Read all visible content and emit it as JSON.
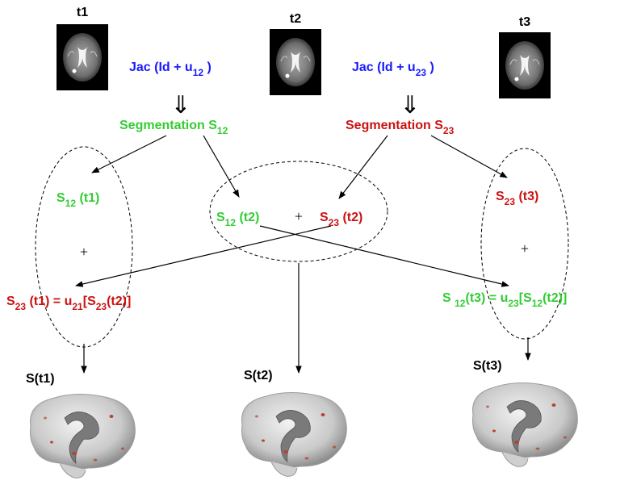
{
  "colors": {
    "green": "#33cc33",
    "red": "#cc1111",
    "blue": "#1a1aff",
    "black": "#000000"
  },
  "timepoints": [
    {
      "label": "t1"
    },
    {
      "label": "t2"
    },
    {
      "label": "t3"
    }
  ],
  "jacobians": [
    {
      "prefix": "Jac (Id + u",
      "sub": "12",
      "suffix": " )"
    },
    {
      "prefix": "Jac (Id + u",
      "sub": "23",
      "suffix": " )"
    }
  ],
  "implies_symbol": "⇓",
  "segmentations": [
    {
      "prefix": "Segmentation S",
      "sub": "12"
    },
    {
      "prefix": "Segmentation S",
      "sub": "23"
    }
  ],
  "nodes": {
    "s12_t1": {
      "s": "S",
      "sub": "12",
      "rest": " (t1)"
    },
    "s12_t2": {
      "s": "S",
      "sub": "12",
      "rest": " (t2)"
    },
    "s23_t2": {
      "s": "S",
      "sub": "23",
      "rest": " (t2)"
    },
    "s23_t3": {
      "s": "S",
      "sub": "23",
      "rest": " (t3)"
    },
    "plus": "+",
    "s23_t1_eq": {
      "s": "S",
      "sub1": "23",
      "mid1": " (t1) = u",
      "sub2": "21",
      "mid2": "[S",
      "sub3": "23",
      "end": "(t2)]"
    },
    "s12_t3_eq": {
      "s": "S ",
      "sub1": "12",
      "mid1": "(t3) = u",
      "sub2": "23",
      "mid2": "[S",
      "sub3": "12",
      "end": "(t2)]"
    }
  },
  "outputs": [
    {
      "label": "S(t1)"
    },
    {
      "label": "S(t2)"
    },
    {
      "label": "S(t3)"
    }
  ]
}
